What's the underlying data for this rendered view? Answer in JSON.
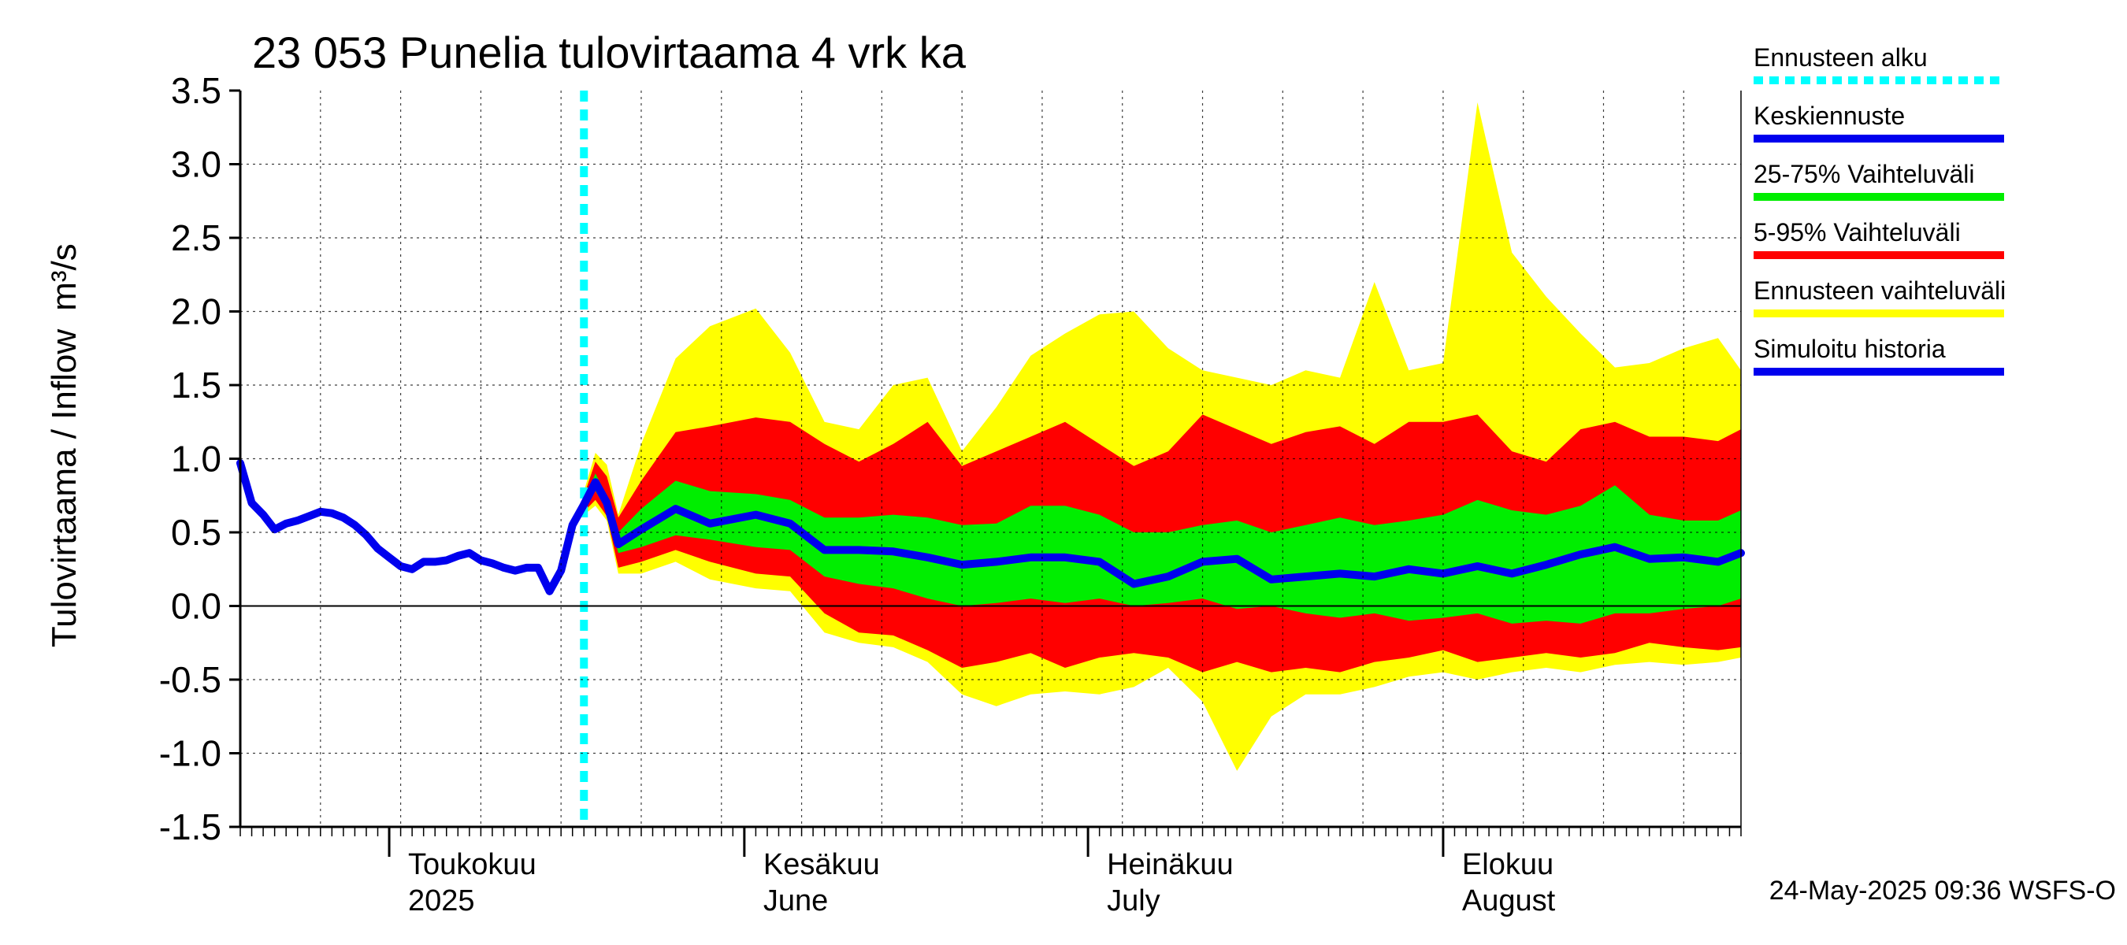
{
  "chart_data": {
    "type": "area",
    "title": "23 053 Punelia tulovirtaama 4 vrk ka",
    "ylabel": "Tulovirtaama / Inflow",
    "yunit": "m³/s",
    "ylim": [
      -1.5,
      3.5
    ],
    "yticks": [
      -1.5,
      -1.0,
      -0.5,
      0.0,
      0.5,
      1.0,
      1.5,
      2.0,
      2.5,
      3.0,
      3.5
    ],
    "ytick_labels": [
      "-1.5",
      "-1.0",
      "-0.5",
      "0.0",
      "0.5",
      "1.0",
      "1.5",
      "2.0",
      "2.5",
      "3.0",
      "3.5"
    ],
    "xlim": [
      "2025-04-18",
      "2025-08-27"
    ],
    "month_labels": [
      {
        "date": "2025-05-01",
        "fi": "Toukokuu",
        "en": "2025"
      },
      {
        "date": "2025-06-01",
        "fi": "Kesäkuu",
        "en": "June"
      },
      {
        "date": "2025-07-01",
        "fi": "Heinäkuu",
        "en": "July"
      },
      {
        "date": "2025-08-01",
        "fi": "Elokuu",
        "en": "August"
      }
    ],
    "forecast_start": "2025-05-18",
    "grid": true,
    "legend_position": "right",
    "legend": [
      {
        "label": "Ennusteen alku",
        "color": "#00ffff",
        "style": "dotted"
      },
      {
        "label": "Keskiennuste",
        "color": "#0000ee",
        "style": "solid"
      },
      {
        "label": "25-75% Vaihteluväli",
        "color": "#00ee00",
        "style": "solid"
      },
      {
        "label": "5-95% Vaihteluväli",
        "color": "#ff0000",
        "style": "solid"
      },
      {
        "label": "Ennusteen vaihteluväli",
        "color": "#ffff00",
        "style": "solid"
      },
      {
        "label": "Simuloitu historia",
        "color": "#0000ee",
        "style": "solid"
      }
    ],
    "colors": {
      "band_full": "#ffff00",
      "band_5_95": "#ff0000",
      "band_25_75": "#00ee00",
      "median": "#0000ee",
      "history": "#0000ee",
      "forecast_start": "#00ffff"
    },
    "history": [
      [
        "2025-04-18",
        0.97
      ],
      [
        "2025-04-19",
        0.7
      ],
      [
        "2025-04-20",
        0.62
      ],
      [
        "2025-04-21",
        0.52
      ],
      [
        "2025-04-22",
        0.56
      ],
      [
        "2025-04-23",
        0.58
      ],
      [
        "2025-04-24",
        0.61
      ],
      [
        "2025-04-25",
        0.64
      ],
      [
        "2025-04-26",
        0.63
      ],
      [
        "2025-04-27",
        0.6
      ],
      [
        "2025-04-28",
        0.55
      ],
      [
        "2025-04-29",
        0.48
      ],
      [
        "2025-04-30",
        0.39
      ],
      [
        "2025-05-01",
        0.33
      ],
      [
        "2025-05-02",
        0.27
      ],
      [
        "2025-05-03",
        0.25
      ],
      [
        "2025-05-04",
        0.3
      ],
      [
        "2025-05-05",
        0.3
      ],
      [
        "2025-05-06",
        0.31
      ],
      [
        "2025-05-07",
        0.34
      ],
      [
        "2025-05-08",
        0.36
      ],
      [
        "2025-05-09",
        0.31
      ],
      [
        "2025-05-10",
        0.29
      ],
      [
        "2025-05-11",
        0.26
      ],
      [
        "2025-05-12",
        0.24
      ],
      [
        "2025-05-13",
        0.26
      ],
      [
        "2025-05-14",
        0.26
      ],
      [
        "2025-05-15",
        0.1
      ],
      [
        "2025-05-16",
        0.24
      ],
      [
        "2025-05-17",
        0.55
      ],
      [
        "2025-05-18",
        0.69
      ],
      [
        "2025-05-19",
        0.84
      ],
      [
        "2025-05-20",
        0.7
      ]
    ],
    "forecast": [
      {
        "x": "2025-05-18",
        "min": 0.62,
        "p5": 0.64,
        "p25": 0.67,
        "median": 0.69,
        "p75": 0.71,
        "p95": 0.75,
        "max": 0.78
      },
      {
        "x": "2025-05-19",
        "min": 0.68,
        "p5": 0.72,
        "p25": 0.78,
        "median": 0.84,
        "p75": 0.9,
        "p95": 0.98,
        "max": 1.04
      },
      {
        "x": "2025-05-20",
        "min": 0.58,
        "p5": 0.61,
        "p25": 0.65,
        "median": 0.7,
        "p75": 0.75,
        "p95": 0.88,
        "max": 0.96
      },
      {
        "x": "2025-05-21",
        "min": 0.22,
        "p5": 0.26,
        "p25": 0.36,
        "median": 0.42,
        "p75": 0.5,
        "p95": 0.6,
        "max": 0.62
      },
      {
        "x": "2025-05-23",
        "min": 0.22,
        "p5": 0.3,
        "p25": 0.4,
        "median": 0.52,
        "p75": 0.66,
        "p95": 0.85,
        "max": 1.1
      },
      {
        "x": "2025-05-26",
        "min": 0.3,
        "p5": 0.38,
        "p25": 0.48,
        "median": 0.66,
        "p75": 0.85,
        "p95": 1.18,
        "max": 1.68
      },
      {
        "x": "2025-05-29",
        "min": 0.18,
        "p5": 0.3,
        "p25": 0.45,
        "median": 0.56,
        "p75": 0.78,
        "p95": 1.22,
        "max": 1.9
      },
      {
        "x": "2025-06-02",
        "min": 0.12,
        "p5": 0.22,
        "p25": 0.4,
        "median": 0.62,
        "p75": 0.76,
        "p95": 1.28,
        "max": 2.02
      },
      {
        "x": "2025-06-05",
        "min": 0.1,
        "p5": 0.2,
        "p25": 0.38,
        "median": 0.56,
        "p75": 0.72,
        "p95": 1.25,
        "max": 1.72
      },
      {
        "x": "2025-06-08",
        "min": -0.18,
        "p5": -0.05,
        "p25": 0.2,
        "median": 0.38,
        "p75": 0.6,
        "p95": 1.1,
        "max": 1.25
      },
      {
        "x": "2025-06-11",
        "min": -0.25,
        "p5": -0.18,
        "p25": 0.15,
        "median": 0.38,
        "p75": 0.6,
        "p95": 0.98,
        "max": 1.2
      },
      {
        "x": "2025-06-14",
        "min": -0.28,
        "p5": -0.2,
        "p25": 0.12,
        "median": 0.37,
        "p75": 0.62,
        "p95": 1.1,
        "max": 1.5
      },
      {
        "x": "2025-06-17",
        "min": -0.38,
        "p5": -0.3,
        "p25": 0.05,
        "median": 0.33,
        "p75": 0.6,
        "p95": 1.25,
        "max": 1.55
      },
      {
        "x": "2025-06-20",
        "min": -0.6,
        "p5": -0.42,
        "p25": 0.0,
        "median": 0.28,
        "p75": 0.55,
        "p95": 0.95,
        "max": 1.05
      },
      {
        "x": "2025-06-23",
        "min": -0.68,
        "p5": -0.38,
        "p25": 0.02,
        "median": 0.3,
        "p75": 0.56,
        "p95": 1.05,
        "max": 1.35
      },
      {
        "x": "2025-06-26",
        "min": -0.6,
        "p5": -0.32,
        "p25": 0.05,
        "median": 0.33,
        "p75": 0.68,
        "p95": 1.15,
        "max": 1.7
      },
      {
        "x": "2025-06-29",
        "min": -0.58,
        "p5": -0.42,
        "p25": 0.02,
        "median": 0.33,
        "p75": 0.68,
        "p95": 1.25,
        "max": 1.85
      },
      {
        "x": "2025-07-02",
        "min": -0.6,
        "p5": -0.35,
        "p25": 0.05,
        "median": 0.3,
        "p75": 0.62,
        "p95": 1.1,
        "max": 1.98
      },
      {
        "x": "2025-07-05",
        "min": -0.55,
        "p5": -0.32,
        "p25": 0.0,
        "median": 0.15,
        "p75": 0.5,
        "p95": 0.95,
        "max": 2.0
      },
      {
        "x": "2025-07-08",
        "min": -0.42,
        "p5": -0.35,
        "p25": 0.02,
        "median": 0.2,
        "p75": 0.5,
        "p95": 1.05,
        "max": 1.75
      },
      {
        "x": "2025-07-11",
        "min": -0.65,
        "p5": -0.45,
        "p25": 0.05,
        "median": 0.3,
        "p75": 0.55,
        "p95": 1.3,
        "max": 1.6
      },
      {
        "x": "2025-07-14",
        "min": -1.12,
        "p5": -0.38,
        "p25": -0.02,
        "median": 0.32,
        "p75": 0.58,
        "p95": 1.2,
        "max": 1.55
      },
      {
        "x": "2025-07-17",
        "min": -0.75,
        "p5": -0.45,
        "p25": 0.0,
        "median": 0.18,
        "p75": 0.5,
        "p95": 1.1,
        "max": 1.5
      },
      {
        "x": "2025-07-20",
        "min": -0.6,
        "p5": -0.42,
        "p25": -0.05,
        "median": 0.2,
        "p75": 0.55,
        "p95": 1.18,
        "max": 1.6
      },
      {
        "x": "2025-07-23",
        "min": -0.6,
        "p5": -0.45,
        "p25": -0.08,
        "median": 0.22,
        "p75": 0.6,
        "p95": 1.22,
        "max": 1.55
      },
      {
        "x": "2025-07-26",
        "min": -0.55,
        "p5": -0.38,
        "p25": -0.05,
        "median": 0.2,
        "p75": 0.55,
        "p95": 1.1,
        "max": 2.2
      },
      {
        "x": "2025-07-29",
        "min": -0.48,
        "p5": -0.35,
        "p25": -0.1,
        "median": 0.25,
        "p75": 0.58,
        "p95": 1.25,
        "max": 1.6
      },
      {
        "x": "2025-08-01",
        "min": -0.45,
        "p5": -0.3,
        "p25": -0.08,
        "median": 0.22,
        "p75": 0.62,
        "p95": 1.25,
        "max": 1.65
      },
      {
        "x": "2025-08-04",
        "min": -0.5,
        "p5": -0.38,
        "p25": -0.05,
        "median": 0.27,
        "p75": 0.72,
        "p95": 1.3,
        "max": 3.42
      },
      {
        "x": "2025-08-07",
        "min": -0.45,
        "p5": -0.35,
        "p25": -0.12,
        "median": 0.22,
        "p75": 0.65,
        "p95": 1.05,
        "max": 2.4
      },
      {
        "x": "2025-08-10",
        "min": -0.42,
        "p5": -0.32,
        "p25": -0.1,
        "median": 0.28,
        "p75": 0.62,
        "p95": 0.98,
        "max": 2.1
      },
      {
        "x": "2025-08-13",
        "min": -0.45,
        "p5": -0.35,
        "p25": -0.12,
        "median": 0.35,
        "p75": 0.68,
        "p95": 1.2,
        "max": 1.85
      },
      {
        "x": "2025-08-16",
        "min": -0.4,
        "p5": -0.32,
        "p25": -0.05,
        "median": 0.4,
        "p75": 0.82,
        "p95": 1.25,
        "max": 1.62
      },
      {
        "x": "2025-08-19",
        "min": -0.38,
        "p5": -0.25,
        "p25": -0.05,
        "median": 0.32,
        "p75": 0.62,
        "p95": 1.15,
        "max": 1.65
      },
      {
        "x": "2025-08-22",
        "min": -0.4,
        "p5": -0.28,
        "p25": -0.02,
        "median": 0.33,
        "p75": 0.58,
        "p95": 1.15,
        "max": 1.75
      },
      {
        "x": "2025-08-25",
        "min": -0.38,
        "p5": -0.3,
        "p25": 0.0,
        "median": 0.3,
        "p75": 0.58,
        "p95": 1.12,
        "max": 1.82
      },
      {
        "x": "2025-08-27",
        "min": -0.35,
        "p5": -0.28,
        "p25": 0.05,
        "median": 0.36,
        "p75": 0.65,
        "p95": 1.2,
        "max": 1.6
      }
    ],
    "timestamp": "24-May-2025 09:36 WSFS-O"
  }
}
